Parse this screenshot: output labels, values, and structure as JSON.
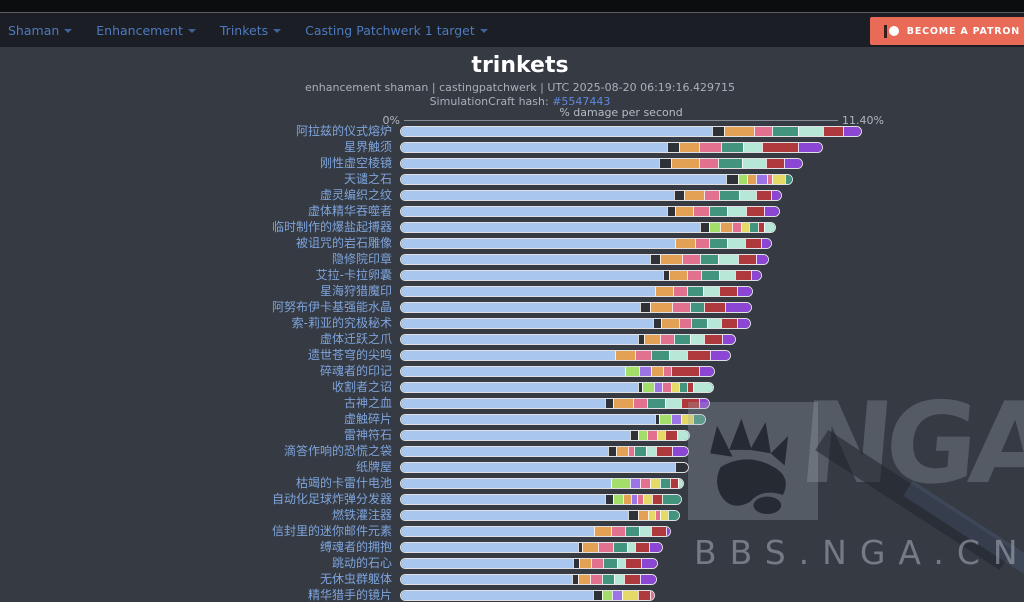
{
  "navbar": {
    "items": [
      {
        "label": "Shaman"
      },
      {
        "label": "Enhancement"
      },
      {
        "label": "Trinkets"
      },
      {
        "label": "Casting Patchwerk 1 target"
      }
    ],
    "patreon_label": "BECOME A PATRON"
  },
  "header": {
    "title": "trinkets",
    "subtitle": "enhancement shaman | castingpatchwerk | UTC 2025-08-20 06:19:16.429715",
    "hash_label": "SimulationCraft hash: ",
    "hash_value": "#5547443"
  },
  "watermark": {
    "logo_text": "NGA",
    "site_text": "BBS.NGA.CN"
  },
  "colors": {
    "page_background": "#353a43",
    "navbar_background": "#1b1e24",
    "nav_link": "#4e7abf",
    "patreon_accent": "#e96a56",
    "label_blue": "#7ea4dc",
    "hash_link_blue": "#5f88dd"
  },
  "chart_data": {
    "type": "bar",
    "orientation": "horizontal-stacked",
    "title": "trinkets",
    "axis_label": "% damage per second",
    "x_min": 0,
    "x_max": 11.4,
    "x_min_label": "0%",
    "x_max_label": "11.40%",
    "grid": false,
    "legend": false,
    "palette": {
      "base": "#a9c6ee",
      "dark": "#2e3136",
      "orange": "#e2a155",
      "pink": "#e2718f",
      "teal": "#43947f",
      "mint": "#b7e7d6",
      "red": "#ae3a3d",
      "purple": "#8b46d4",
      "green": "#a4de6a",
      "violet": "#9b74e6",
      "yellow": "#e5d967"
    },
    "rows": [
      {
        "label": "阿拉兹的仪式熔炉",
        "total": 11.4,
        "segments": [
          [
            "dark",
            0.3
          ],
          [
            "orange",
            0.75
          ],
          [
            "pink",
            0.45
          ],
          [
            "teal",
            0.65
          ],
          [
            "mint",
            0.6
          ],
          [
            "red",
            0.5
          ],
          [
            "purple",
            0.45
          ]
        ]
      },
      {
        "label": "星界触须",
        "total": 10.44,
        "segments": [
          [
            "dark",
            0.3
          ],
          [
            "orange",
            0.5
          ],
          [
            "pink",
            0.55
          ],
          [
            "teal",
            0.55
          ],
          [
            "mint",
            0.45
          ],
          [
            "red",
            0.9
          ],
          [
            "purple",
            0.6
          ]
        ]
      },
      {
        "label": "刚性虚空棱镜",
        "total": 9.94,
        "segments": [
          [
            "dark",
            0.3
          ],
          [
            "orange",
            0.7
          ],
          [
            "pink",
            0.45
          ],
          [
            "teal",
            0.6
          ],
          [
            "mint",
            0.6
          ],
          [
            "red",
            0.45
          ],
          [
            "purple",
            0.44
          ]
        ]
      },
      {
        "label": "天谴之石",
        "total": 9.7,
        "segments": [
          [
            "dark",
            0.3
          ],
          [
            "green",
            0.22
          ],
          [
            "orange",
            0.22
          ],
          [
            "violet",
            0.28
          ],
          [
            "pink",
            0.12
          ],
          [
            "yellow",
            0.31
          ],
          [
            "teal",
            0.18
          ]
        ]
      },
      {
        "label": "虚灵编织之纹",
        "total": 9.43,
        "segments": [
          [
            "dark",
            0.25
          ],
          [
            "orange",
            0.5
          ],
          [
            "pink",
            0.38
          ],
          [
            "teal",
            0.48
          ],
          [
            "mint",
            0.42
          ],
          [
            "red",
            0.38
          ],
          [
            "purple",
            0.25
          ]
        ]
      },
      {
        "label": "虚体精华吞噬者",
        "total": 9.38,
        "segments": [
          [
            "dark",
            0.2
          ],
          [
            "orange",
            0.45
          ],
          [
            "pink",
            0.4
          ],
          [
            "teal",
            0.45
          ],
          [
            "mint",
            0.45
          ],
          [
            "red",
            0.45
          ],
          [
            "purple",
            0.38
          ]
        ]
      },
      {
        "label": "临时制作的爆盐起搏器",
        "total": 9.28,
        "segments": [
          [
            "dark",
            0.22
          ],
          [
            "green",
            0.28
          ],
          [
            "orange",
            0.3
          ],
          [
            "pink",
            0.22
          ],
          [
            "yellow",
            0.2
          ],
          [
            "teal",
            0.22
          ],
          [
            "red",
            0.15
          ],
          [
            "mint",
            0.28
          ]
        ]
      },
      {
        "label": "被诅咒的岩石雕像",
        "total": 9.18,
        "segments": [
          [
            "orange",
            0.5
          ],
          [
            "pink",
            0.35
          ],
          [
            "teal",
            0.45
          ],
          [
            "mint",
            0.45
          ],
          [
            "red",
            0.4
          ],
          [
            "purple",
            0.24
          ]
        ]
      },
      {
        "label": "隐修院印章",
        "total": 9.11,
        "segments": [
          [
            "dark",
            0.25
          ],
          [
            "orange",
            0.55
          ],
          [
            "pink",
            0.45
          ],
          [
            "teal",
            0.45
          ],
          [
            "mint",
            0.5
          ],
          [
            "red",
            0.45
          ],
          [
            "purple",
            0.29
          ]
        ]
      },
      {
        "label": "艾拉-卡拉卵囊",
        "total": 8.93,
        "segments": [
          [
            "dark",
            0.15
          ],
          [
            "orange",
            0.45
          ],
          [
            "pink",
            0.35
          ],
          [
            "teal",
            0.45
          ],
          [
            "mint",
            0.4
          ],
          [
            "red",
            0.4
          ],
          [
            "purple",
            0.24
          ]
        ]
      },
      {
        "label": "星海狩猎魔印",
        "total": 8.71,
        "segments": [
          [
            "orange",
            0.45
          ],
          [
            "pink",
            0.35
          ],
          [
            "teal",
            0.4
          ],
          [
            "mint",
            0.4
          ],
          [
            "red",
            0.45
          ],
          [
            "purple",
            0.36
          ]
        ]
      },
      {
        "label": "阿努布伊卡基强能水晶",
        "total": 8.69,
        "segments": [
          [
            "dark",
            0.25
          ],
          [
            "orange",
            0.55
          ],
          [
            "pink",
            0.45
          ],
          [
            "teal",
            0.35
          ],
          [
            "red",
            0.5
          ],
          [
            "purple",
            0.66
          ]
        ]
      },
      {
        "label": "索-莉亚的究极秘术",
        "total": 8.66,
        "segments": [
          [
            "dark",
            0.2
          ],
          [
            "orange",
            0.45
          ],
          [
            "pink",
            0.3
          ],
          [
            "teal",
            0.4
          ],
          [
            "mint",
            0.35
          ],
          [
            "red",
            0.4
          ],
          [
            "purple",
            0.31
          ]
        ]
      },
      {
        "label": "虚体迁跃之爪",
        "total": 8.29,
        "segments": [
          [
            "dark",
            0.15
          ],
          [
            "orange",
            0.4
          ],
          [
            "pink",
            0.35
          ],
          [
            "teal",
            0.4
          ],
          [
            "mint",
            0.35
          ],
          [
            "red",
            0.45
          ],
          [
            "purple",
            0.31
          ]
        ]
      },
      {
        "label": "遗世苍穹的尖鸣",
        "total": 8.17,
        "segments": [
          [
            "orange",
            0.5
          ],
          [
            "pink",
            0.4
          ],
          [
            "teal",
            0.45
          ],
          [
            "mint",
            0.45
          ],
          [
            "red",
            0.55
          ],
          [
            "purple",
            0.51
          ]
        ]
      },
      {
        "label": "碎魂者的印记",
        "total": 7.77,
        "segments": [
          [
            "green",
            0.35
          ],
          [
            "violet",
            0.3
          ],
          [
            "orange",
            0.3
          ],
          [
            "pink",
            0.2
          ],
          [
            "red",
            0.68
          ],
          [
            "purple",
            0.38
          ]
        ]
      },
      {
        "label": "收割者之诏",
        "total": 7.75,
        "segments": [
          [
            "dark",
            0.1
          ],
          [
            "green",
            0.3
          ],
          [
            "violet",
            0.2
          ],
          [
            "pink",
            0.22
          ],
          [
            "yellow",
            0.2
          ],
          [
            "teal",
            0.2
          ],
          [
            "red",
            0.15
          ],
          [
            "mint",
            0.5
          ]
        ]
      },
      {
        "label": "古神之血",
        "total": 7.65,
        "segments": [
          [
            "dark",
            0.2
          ],
          [
            "orange",
            0.5
          ],
          [
            "pink",
            0.35
          ],
          [
            "teal",
            0.45
          ],
          [
            "mint",
            0.4
          ],
          [
            "red",
            0.45
          ],
          [
            "purple",
            0.24
          ]
        ]
      },
      {
        "label": "虚触碎片",
        "total": 7.55,
        "segments": [
          [
            "dark",
            0.1
          ],
          [
            "green",
            0.3
          ],
          [
            "violet",
            0.25
          ],
          [
            "yellow",
            0.3
          ],
          [
            "teal",
            0.3
          ]
        ]
      },
      {
        "label": "雷神符石",
        "total": 7.16,
        "segments": [
          [
            "dark",
            0.2
          ],
          [
            "green",
            0.22
          ],
          [
            "pink",
            0.25
          ],
          [
            "yellow",
            0.2
          ],
          [
            "red",
            0.3
          ],
          [
            "mint",
            0.31
          ]
        ]
      },
      {
        "label": "滴答作响的恐慌之袋",
        "total": 7.13,
        "segments": [
          [
            "dark",
            0.2
          ],
          [
            "orange",
            0.3
          ],
          [
            "pink",
            0.15
          ],
          [
            "teal",
            0.3
          ],
          [
            "mint",
            0.25
          ],
          [
            "red",
            0.4
          ],
          [
            "purple",
            0.39
          ]
        ]
      },
      {
        "label": "纸牌屋",
        "total": 7.13,
        "segments": [
          [
            "dark",
            0.32
          ]
        ]
      },
      {
        "label": "枯竭的卡雷什电池",
        "total": 7.01,
        "segments": [
          [
            "green",
            0.45
          ],
          [
            "violet",
            0.25
          ],
          [
            "pink",
            0.25
          ],
          [
            "yellow",
            0.25
          ],
          [
            "teal",
            0.25
          ],
          [
            "red",
            0.2
          ],
          [
            "mint",
            0.13
          ]
        ]
      },
      {
        "label": "自动化足球炸弹分发器",
        "total": 6.96,
        "segments": [
          [
            "dark",
            0.2
          ],
          [
            "green",
            0.25
          ],
          [
            "orange",
            0.2
          ],
          [
            "violet",
            0.15
          ],
          [
            "pink",
            0.15
          ],
          [
            "yellow",
            0.22
          ],
          [
            "red",
            0.25
          ],
          [
            "teal",
            0.48
          ]
        ]
      },
      {
        "label": "燃铁灌注器",
        "total": 6.91,
        "segments": [
          [
            "dark",
            0.25
          ],
          [
            "orange",
            0.25
          ],
          [
            "yellow",
            0.18
          ],
          [
            "pink",
            0.12
          ],
          [
            "yellow",
            0.2
          ],
          [
            "teal",
            0.28
          ]
        ]
      },
      {
        "label": "信封里的迷你邮件元素",
        "total": 6.69,
        "segments": [
          [
            "orange",
            0.4
          ],
          [
            "pink",
            0.35
          ],
          [
            "teal",
            0.35
          ],
          [
            "mint",
            0.3
          ],
          [
            "red",
            0.38
          ],
          [
            "purple",
            0.1
          ]
        ]
      },
      {
        "label": "缚魂者的拥抱",
        "total": 6.49,
        "segments": [
          [
            "dark",
            0.12
          ],
          [
            "orange",
            0.4
          ],
          [
            "pink",
            0.35
          ],
          [
            "teal",
            0.35
          ],
          [
            "mint",
            0.2
          ],
          [
            "red",
            0.35
          ],
          [
            "purple",
            0.33
          ]
        ]
      },
      {
        "label": "跳动的石心",
        "total": 6.37,
        "segments": [
          [
            "dark",
            0.15
          ],
          [
            "orange",
            0.3
          ],
          [
            "pink",
            0.3
          ],
          [
            "teal",
            0.35
          ],
          [
            "mint",
            0.2
          ],
          [
            "red",
            0.4
          ],
          [
            "purple",
            0.4
          ]
        ]
      },
      {
        "label": "无休虫群躯体",
        "total": 6.34,
        "segments": [
          [
            "dark",
            0.15
          ],
          [
            "orange",
            0.3
          ],
          [
            "pink",
            0.3
          ],
          [
            "teal",
            0.3
          ],
          [
            "mint",
            0.25
          ],
          [
            "red",
            0.4
          ],
          [
            "purple",
            0.39
          ]
        ]
      },
      {
        "label": "精华猎手的镜片",
        "total": 6.29,
        "segments": [
          [
            "dark",
            0.22
          ],
          [
            "green",
            0.25
          ],
          [
            "violet",
            0.25
          ],
          [
            "yellow",
            0.4
          ],
          [
            "red",
            0.3
          ],
          [
            "pink",
            0.1
          ]
        ]
      }
    ]
  }
}
